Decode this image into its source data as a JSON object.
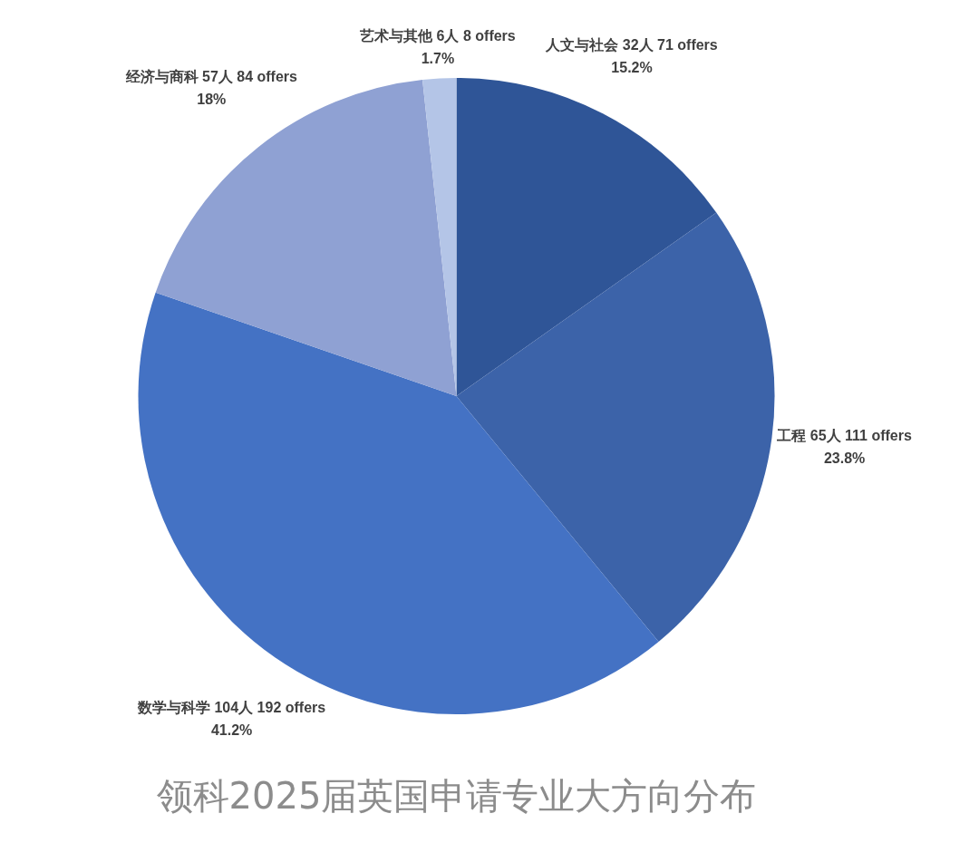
{
  "chart_data": {
    "type": "pie",
    "title": "领科2025届英国申请专业大方向分布",
    "categories": [
      "人文与社会 32人 71 offers",
      "工程 65人 111 offers",
      "数学与科学 104人 192 offers",
      "经济与商科 57人 84 offers",
      "艺术与其他 6人 8 offers"
    ],
    "values": [
      15.2,
      23.8,
      41.2,
      18,
      1.7
    ],
    "value_labels": [
      "15.2%",
      "23.8%",
      "41.2%",
      "18%",
      "1.7%"
    ],
    "colors": [
      "#2f5597",
      "#3c63a9",
      "#4472c4",
      "#8fa1d3",
      "#b4c5e7"
    ],
    "legend": false
  }
}
